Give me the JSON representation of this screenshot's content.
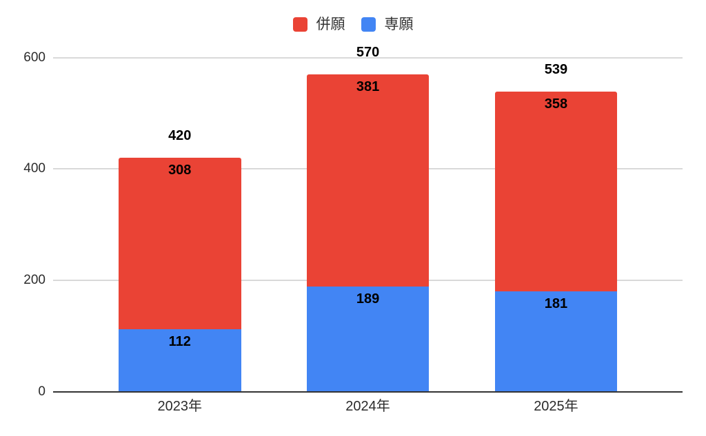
{
  "chart_data": {
    "type": "bar",
    "stacked": true,
    "categories": [
      "2023年",
      "2024年",
      "2025年"
    ],
    "series": [
      {
        "name": "専願",
        "color": "#4285F4",
        "values": [
          112,
          189,
          181
        ]
      },
      {
        "name": "併願",
        "color": "#EA4335",
        "values": [
          308,
          381,
          358
        ]
      }
    ],
    "totals": [
      "420",
      "570",
      "539"
    ],
    "legend": {
      "position": "top",
      "items": [
        {
          "label": "併願",
          "color": "#EA4335"
        },
        {
          "label": "専願",
          "color": "#4285F4"
        }
      ]
    },
    "yaxis": {
      "min": 0,
      "max": 600,
      "ticks": [
        "0",
        "200",
        "400",
        "600"
      ]
    },
    "grid": true,
    "colors": {
      "gridline": "#d9d9d9",
      "baseline": "#333333",
      "data_label": "#000000",
      "axis_text": "#2b2b2b",
      "background": "#ffffff"
    }
  }
}
